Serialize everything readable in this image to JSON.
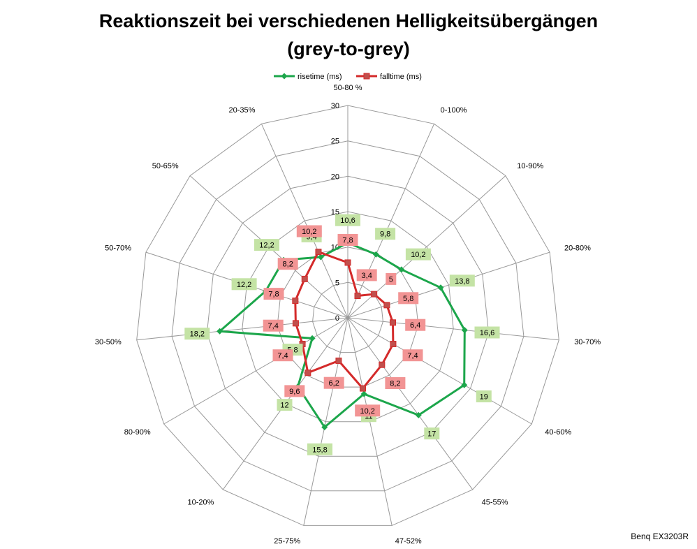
{
  "title_line1": "Reaktionszeit bei verschiedenen Helligkeitsübergängen",
  "title_line2": "(grey-to-grey)",
  "footer": "Benq EX3203R",
  "colors": {
    "risetime": "#1ca64b",
    "falltime": "#d42a2a",
    "rise_label_bg": "#c4e3a5",
    "fall_label_bg": "#f29494",
    "grid": "#999999"
  },
  "chart_data": {
    "type": "radar",
    "title": "Reaktionszeit bei verschiedenen Helligkeitsübergängen (grey-to-grey)",
    "categories": [
      "50-80 %",
      "0-100%",
      "10-90%",
      "20-80%",
      "30-70%",
      "40-60%",
      "45-55%",
      "47-52%",
      "25-75%",
      "10-20%",
      "80-90%",
      "30-50%",
      "50-70%",
      "50-65%",
      "20-35%"
    ],
    "rlim": [
      0,
      30
    ],
    "rticks": [
      0,
      5,
      10,
      15,
      20,
      25,
      30
    ],
    "legend_position": "top",
    "series": [
      {
        "name": "risetime (ms)",
        "values": [
          10.6,
          9.8,
          10.2,
          13.8,
          16.6,
          19,
          17,
          11,
          15.8,
          12,
          5.8,
          18.2,
          12.2,
          12.2,
          9.4
        ],
        "labels": [
          "10,6",
          "9,8",
          "10,2",
          "13,8",
          "16,6",
          "19",
          "17",
          "11",
          "15,8",
          "12",
          "5,8",
          "18,2",
          "12,2",
          "12,2",
          "9,4"
        ]
      },
      {
        "name": "falltime (ms)",
        "values": [
          7.8,
          3.4,
          5,
          5.8,
          6.4,
          7.4,
          8.2,
          10.2,
          6.2,
          9.6,
          7.4,
          7.4,
          7.8,
          8.2,
          10.2
        ],
        "labels": [
          "7,8",
          "3,4",
          "5",
          "5,8",
          "6,4",
          "7,4",
          "8,2",
          "10,2",
          "6,2",
          "9,6",
          "7,4",
          "7,4",
          "7,8",
          "8,2",
          "10,2"
        ]
      }
    ]
  }
}
